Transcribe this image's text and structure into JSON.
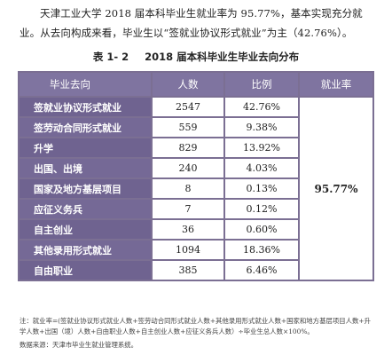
{
  "intro": "天津工业大学 2018 届本科毕业生就业率为 95.77%，基本实现充分就业。从去向构成来看，毕业生以“签就业协议形式就业”为主（42.76%）。",
  "caption": {
    "number": "表 1- 2",
    "title": "2018 届本科毕业生毕业去向分布"
  },
  "table": {
    "headers": [
      "毕业去向",
      "人数",
      "比例",
      "就业率"
    ],
    "employment_rate": "95.77%",
    "rows": [
      {
        "category": "签就业协议形式就业",
        "count": "2547",
        "ratio": "42.76%"
      },
      {
        "category": "签劳动合同形式就业",
        "count": "559",
        "ratio": "9.38%"
      },
      {
        "category": "升学",
        "count": "829",
        "ratio": "13.92%"
      },
      {
        "category": "出国、出境",
        "count": "240",
        "ratio": "4.03%"
      },
      {
        "category": "国家及地方基层项目",
        "count": "8",
        "ratio": "0.13%"
      },
      {
        "category": "应征义务兵",
        "count": "7",
        "ratio": "0.12%"
      },
      {
        "category": "自主创业",
        "count": "36",
        "ratio": "0.60%"
      },
      {
        "category": "其他录用形式就业",
        "count": "1094",
        "ratio": "18.36%"
      },
      {
        "category": "自由职业",
        "count": "385",
        "ratio": "6.46%"
      }
    ]
  },
  "note": "注：就业率=(签就业协议形式就业人数+签劳动合同形式就业人数+其他录用形式就业人数+国家和地方基层项目人数+升学人数+出国（境）人数+自由职业人数+自主创业人数+应征义务兵人数）÷毕业生总人数×100%。",
  "source": "数据来源：天津市毕业生就业管理系统。"
}
